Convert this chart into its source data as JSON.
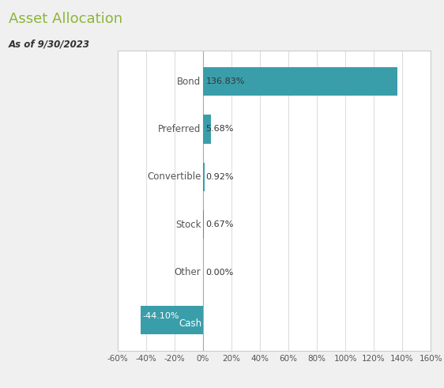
{
  "title": "Asset Allocation",
  "subtitle": "As of 9/30/2023",
  "categories": [
    "Bond",
    "Preferred",
    "Convertible",
    "Stock",
    "Other",
    "Cash"
  ],
  "values": [
    136.83,
    5.68,
    0.92,
    0.67,
    0.0,
    -44.1
  ],
  "labels": [
    "136.83%",
    "5.68%",
    "0.92%",
    "0.67%",
    "0.00%",
    "-44.10%"
  ],
  "bar_color": "#3a9eaa",
  "title_color": "#8db53a",
  "subtitle_color": "#333333",
  "label_color_dark": "#333333",
  "label_color_light": "#ffffff",
  "category_color": "#555555",
  "background_color": "#f0f0f0",
  "plot_bg_color": "#ffffff",
  "grid_color": "#dddddd",
  "xlim": [
    -60,
    160
  ],
  "xticks": [
    -60,
    -40,
    -20,
    0,
    20,
    40,
    60,
    80,
    100,
    120,
    140,
    160
  ],
  "xtick_labels": [
    "-60%",
    "-40%",
    "-20%",
    "0%",
    "20%",
    "40%",
    "60%",
    "80%",
    "100%",
    "120%",
    "140%",
    "160%"
  ]
}
